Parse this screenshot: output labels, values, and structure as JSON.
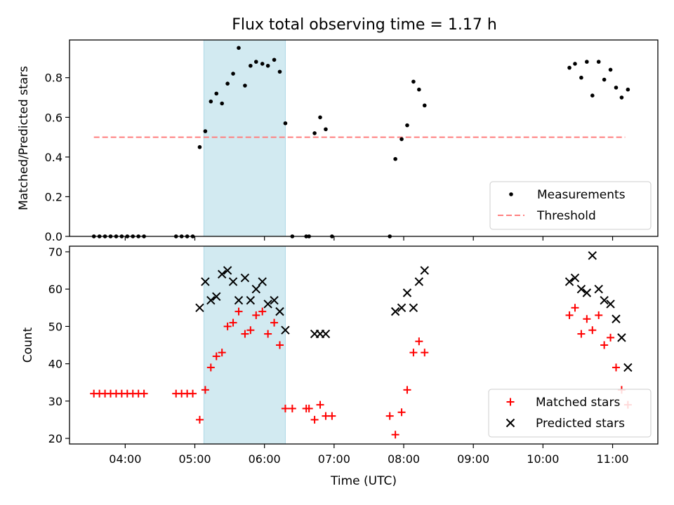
{
  "figure": {
    "title": "Flux total observing time = 1.17 h"
  },
  "colors": {
    "band": "#add8e6",
    "threshold": "#ff7f7f",
    "measurement": "#000000",
    "matched": "#ff0000",
    "predicted": "#000000"
  },
  "chart_data": [
    {
      "type": "scatter",
      "ylabel": "Matched/Predicted stars",
      "xlim": [
        3.2,
        11.65
      ],
      "ylim": [
        0.0,
        0.99
      ],
      "yticks": [
        0.0,
        0.2,
        0.4,
        0.6,
        0.8
      ],
      "ytick_labels": [
        "0.0",
        "0.2",
        "0.4",
        "0.6",
        "0.8"
      ],
      "shaded_interval": [
        5.13,
        6.3
      ],
      "threshold": {
        "name": "Threshold",
        "value": 0.5,
        "x_range": [
          3.55,
          11.18
        ]
      },
      "legend": {
        "position": "lower-right",
        "entries": [
          "Measurements",
          "Threshold"
        ]
      },
      "series": [
        {
          "name": "Measurements",
          "marker": "dot",
          "points": [
            [
              3.55,
              0
            ],
            [
              3.63,
              0
            ],
            [
              3.71,
              0
            ],
            [
              3.79,
              0
            ],
            [
              3.87,
              0
            ],
            [
              3.95,
              0
            ],
            [
              4.03,
              0
            ],
            [
              4.11,
              0
            ],
            [
              4.19,
              0
            ],
            [
              4.27,
              0
            ],
            [
              4.73,
              0
            ],
            [
              4.81,
              0
            ],
            [
              4.89,
              0
            ],
            [
              4.97,
              0
            ],
            [
              5.07,
              0.45
            ],
            [
              5.15,
              0.53
            ],
            [
              5.23,
              0.68
            ],
            [
              5.31,
              0.72
            ],
            [
              5.39,
              0.67
            ],
            [
              5.47,
              0.77
            ],
            [
              5.55,
              0.82
            ],
            [
              5.63,
              0.95
            ],
            [
              5.72,
              0.76
            ],
            [
              5.8,
              0.86
            ],
            [
              5.88,
              0.88
            ],
            [
              5.97,
              0.87
            ],
            [
              6.05,
              0.86
            ],
            [
              6.14,
              0.89
            ],
            [
              6.22,
              0.83
            ],
            [
              6.3,
              0.57
            ],
            [
              6.4,
              0
            ],
            [
              6.6,
              0
            ],
            [
              6.64,
              0
            ],
            [
              6.72,
              0.52
            ],
            [
              6.8,
              0.6
            ],
            [
              6.88,
              0.54
            ],
            [
              6.97,
              0
            ],
            [
              7.8,
              0
            ],
            [
              7.88,
              0.39
            ],
            [
              7.97,
              0.49
            ],
            [
              8.05,
              0.56
            ],
            [
              8.14,
              0.78
            ],
            [
              8.22,
              0.74
            ],
            [
              8.3,
              0.66
            ],
            [
              10.38,
              0.85
            ],
            [
              10.46,
              0.87
            ],
            [
              10.55,
              0.8
            ],
            [
              10.63,
              0.88
            ],
            [
              10.71,
              0.71
            ],
            [
              10.8,
              0.88
            ],
            [
              10.88,
              0.79
            ],
            [
              10.97,
              0.84
            ],
            [
              11.05,
              0.75
            ],
            [
              11.13,
              0.7
            ],
            [
              11.22,
              0.74
            ]
          ]
        }
      ]
    },
    {
      "type": "scatter",
      "xlabel": "Time (UTC)",
      "ylabel": "Count",
      "xlim": [
        3.2,
        11.65
      ],
      "ylim": [
        18.5,
        71.5
      ],
      "xticks": [
        4,
        5,
        6,
        7,
        8,
        9,
        10,
        11
      ],
      "xtick_labels": [
        "04:00",
        "05:00",
        "06:00",
        "07:00",
        "08:00",
        "09:00",
        "10:00",
        "11:00"
      ],
      "yticks": [
        20,
        30,
        40,
        50,
        60,
        70
      ],
      "ytick_labels": [
        "20",
        "30",
        "40",
        "50",
        "60",
        "70"
      ],
      "shaded_interval": [
        5.13,
        6.3
      ],
      "legend": {
        "position": "lower-right",
        "entries": [
          "Matched stars",
          "Predicted stars"
        ]
      },
      "series": [
        {
          "name": "Matched stars",
          "marker": "plus",
          "points": [
            [
              3.55,
              32
            ],
            [
              3.63,
              32
            ],
            [
              3.71,
              32
            ],
            [
              3.79,
              32
            ],
            [
              3.87,
              32
            ],
            [
              3.95,
              32
            ],
            [
              4.03,
              32
            ],
            [
              4.11,
              32
            ],
            [
              4.19,
              32
            ],
            [
              4.27,
              32
            ],
            [
              4.73,
              32
            ],
            [
              4.81,
              32
            ],
            [
              4.89,
              32
            ],
            [
              4.97,
              32
            ],
            [
              5.07,
              25
            ],
            [
              5.15,
              33
            ],
            [
              5.23,
              39
            ],
            [
              5.31,
              42
            ],
            [
              5.39,
              43
            ],
            [
              5.47,
              50
            ],
            [
              5.55,
              51
            ],
            [
              5.63,
              54
            ],
            [
              5.72,
              48
            ],
            [
              5.8,
              49
            ],
            [
              5.88,
              53
            ],
            [
              5.97,
              54
            ],
            [
              6.05,
              48
            ],
            [
              6.14,
              51
            ],
            [
              6.22,
              45
            ],
            [
              6.3,
              28
            ],
            [
              6.4,
              28
            ],
            [
              6.6,
              28
            ],
            [
              6.64,
              28
            ],
            [
              6.72,
              25
            ],
            [
              6.8,
              29
            ],
            [
              6.88,
              26
            ],
            [
              6.97,
              26
            ],
            [
              7.8,
              26
            ],
            [
              7.88,
              21
            ],
            [
              7.97,
              27
            ],
            [
              8.05,
              33
            ],
            [
              8.14,
              43
            ],
            [
              8.22,
              46
            ],
            [
              8.3,
              43
            ],
            [
              10.38,
              53
            ],
            [
              10.46,
              55
            ],
            [
              10.55,
              48
            ],
            [
              10.63,
              52
            ],
            [
              10.71,
              49
            ],
            [
              10.8,
              53
            ],
            [
              10.88,
              45
            ],
            [
              10.97,
              47
            ],
            [
              11.05,
              39
            ],
            [
              11.13,
              33
            ],
            [
              11.22,
              29
            ]
          ]
        },
        {
          "name": "Predicted stars",
          "marker": "x",
          "points": [
            [
              5.07,
              55
            ],
            [
              5.15,
              62
            ],
            [
              5.23,
              57
            ],
            [
              5.31,
              58
            ],
            [
              5.39,
              64
            ],
            [
              5.47,
              65
            ],
            [
              5.55,
              62
            ],
            [
              5.63,
              57
            ],
            [
              5.72,
              63
            ],
            [
              5.8,
              57
            ],
            [
              5.88,
              60
            ],
            [
              5.97,
              62
            ],
            [
              6.05,
              56
            ],
            [
              6.14,
              57
            ],
            [
              6.22,
              54
            ],
            [
              6.3,
              49
            ],
            [
              6.72,
              48
            ],
            [
              6.8,
              48
            ],
            [
              6.88,
              48
            ],
            [
              7.88,
              54
            ],
            [
              7.97,
              55
            ],
            [
              8.05,
              59
            ],
            [
              8.14,
              55
            ],
            [
              8.22,
              62
            ],
            [
              8.3,
              65
            ],
            [
              10.38,
              62
            ],
            [
              10.46,
              63
            ],
            [
              10.55,
              60
            ],
            [
              10.63,
              59
            ],
            [
              10.71,
              69
            ],
            [
              10.8,
              60
            ],
            [
              10.88,
              57
            ],
            [
              10.97,
              56
            ],
            [
              11.05,
              52
            ],
            [
              11.13,
              47
            ],
            [
              11.22,
              39
            ]
          ]
        }
      ]
    }
  ]
}
